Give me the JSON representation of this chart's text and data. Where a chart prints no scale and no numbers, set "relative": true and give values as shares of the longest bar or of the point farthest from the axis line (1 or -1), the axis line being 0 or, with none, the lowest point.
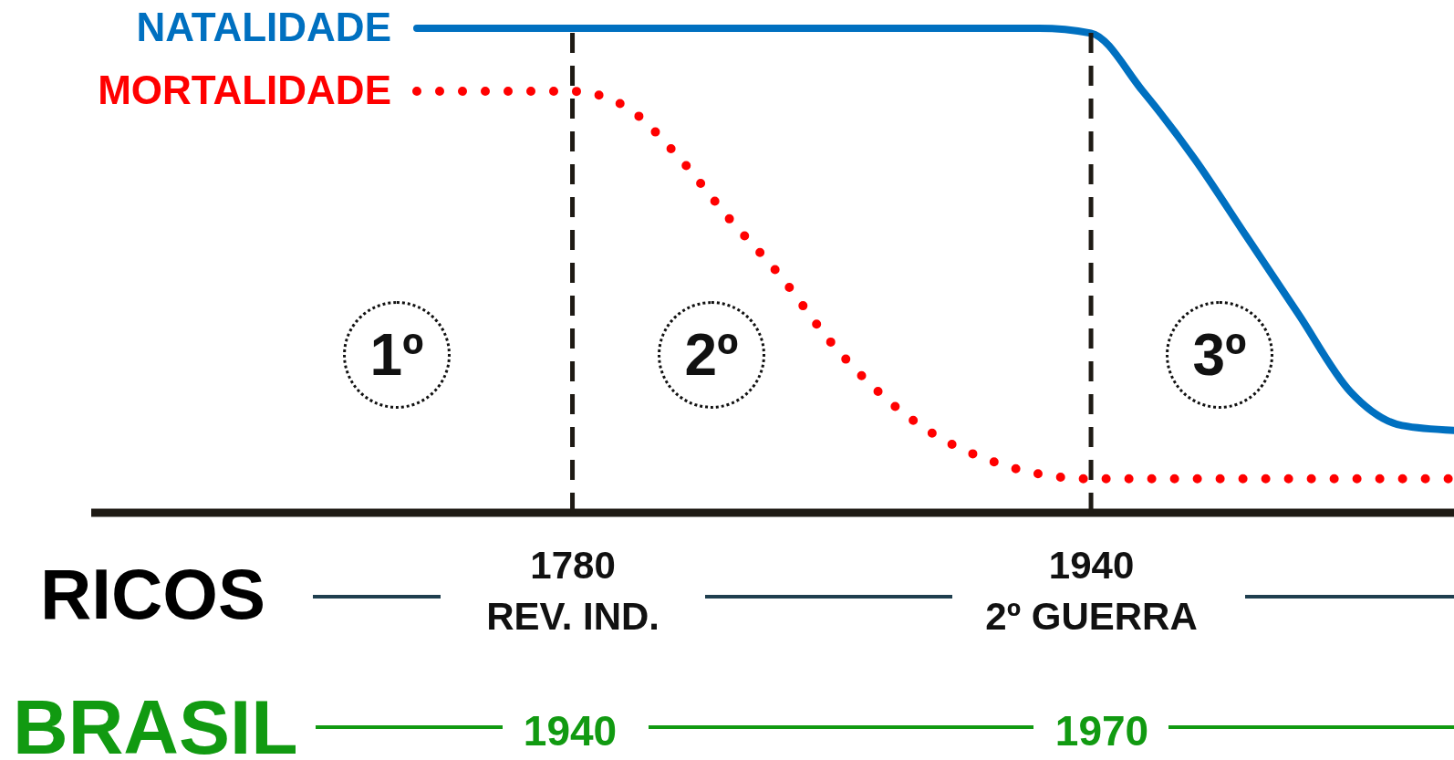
{
  "chart_data": {
    "type": "line",
    "relative": true,
    "categories": [
      null,
      null,
      null,
      "1780\nREV. IND.",
      null,
      null,
      null,
      null,
      null,
      null,
      null,
      null,
      null,
      "1940\n2º GUERRA",
      null,
      null,
      null,
      null,
      null,
      null,
      null
    ],
    "series": [
      {
        "name": "NATALIDADE",
        "color": "#0070c0",
        "line_style": "solid",
        "values": [
          1,
          1,
          1,
          1,
          1,
          1,
          1,
          1,
          1,
          1,
          1,
          1,
          1,
          0.99,
          0.87,
          0.73,
          0.57,
          0.41,
          0.25,
          0.18,
          0.17
        ]
      },
      {
        "name": "MORTALIDADE",
        "color": "#ff0000",
        "line_style": "dotted",
        "values": [
          0.87,
          0.87,
          0.87,
          0.87,
          0.84,
          0.74,
          0.61,
          0.49,
          0.35,
          0.24,
          0.16,
          0.11,
          0.08,
          0.07,
          0.07,
          0.07,
          0.07,
          0.07,
          0.07,
          0.07,
          0.07
        ]
      }
    ],
    "ref_lines": [
      {
        "axis": "x",
        "value": "1780\nREV. IND.",
        "color": "#1e1a14",
        "line_style": "dashed"
      },
      {
        "axis": "x",
        "value": "1940\n2º GUERRA",
        "color": "#1e1a14",
        "line_style": "dashed"
      }
    ],
    "annotations": [
      "1º",
      "2º",
      "3º",
      "RICOS",
      "BRASIL",
      "1940",
      "1970"
    ]
  }
}
